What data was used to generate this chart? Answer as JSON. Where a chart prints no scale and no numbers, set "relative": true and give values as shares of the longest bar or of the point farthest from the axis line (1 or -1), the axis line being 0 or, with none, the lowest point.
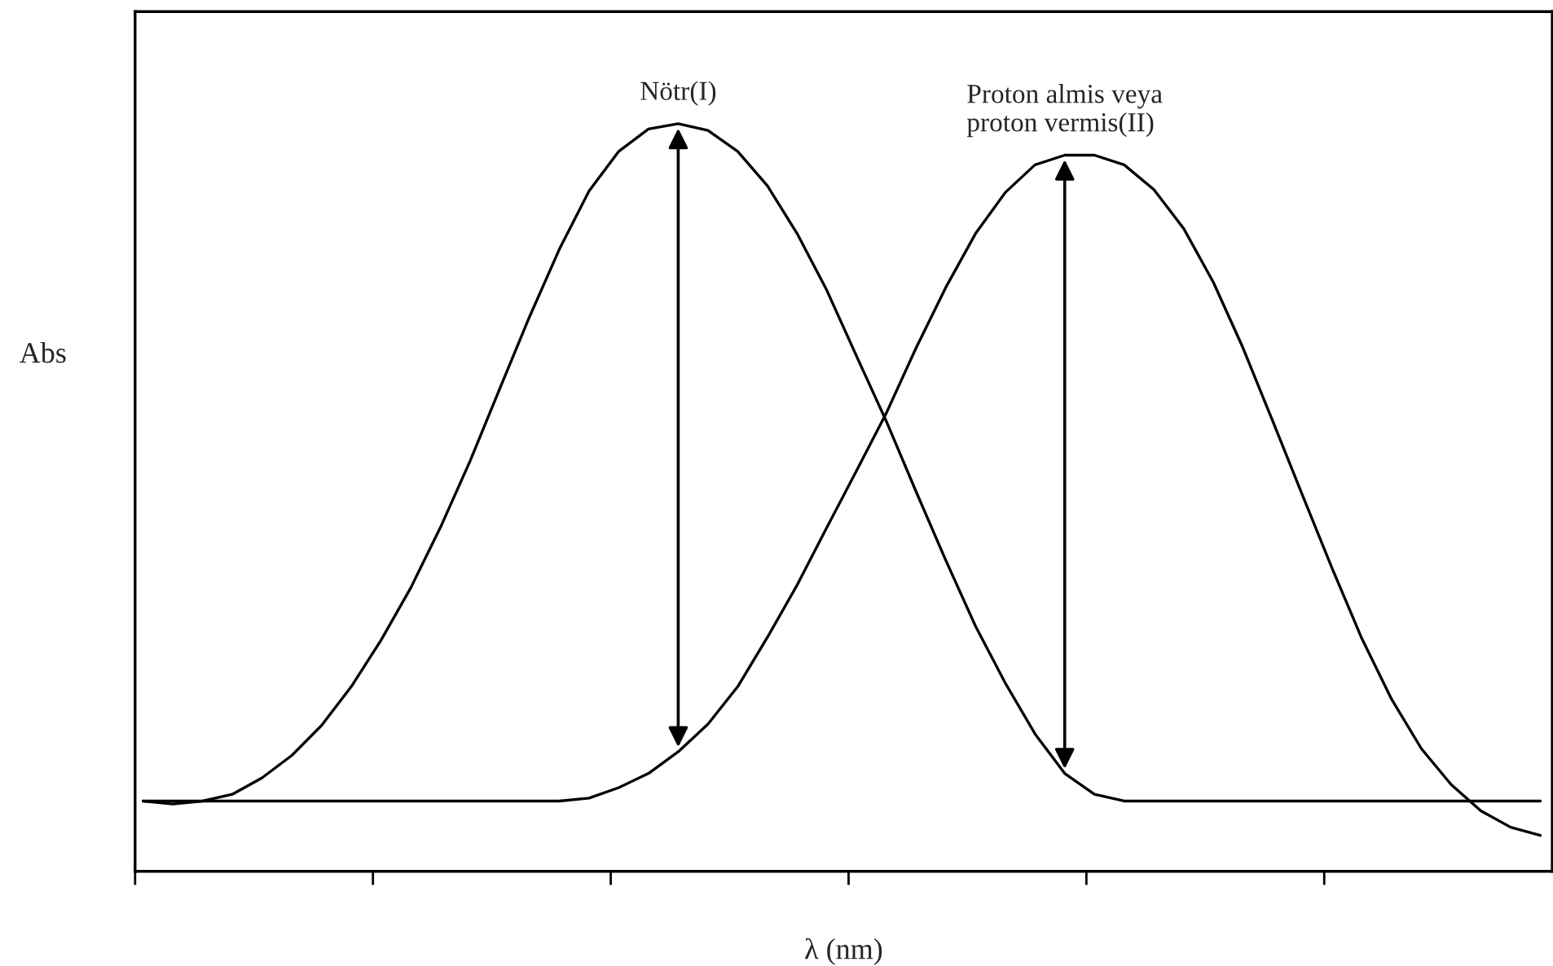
{
  "chart_data": {
    "type": "line",
    "relative": true,
    "xlabel": "λ (nm)",
    "ylabel": "Abs",
    "categories": [
      null,
      null,
      null,
      null,
      null,
      null,
      null,
      null,
      null,
      null,
      null,
      null,
      null,
      null,
      null,
      null,
      null,
      null,
      null,
      null,
      null,
      null,
      null,
      null,
      null,
      null,
      null,
      null,
      null,
      null,
      null,
      null,
      null,
      null,
      null,
      null,
      null,
      null,
      null,
      null,
      null,
      null,
      null,
      null,
      null,
      null,
      null,
      null
    ],
    "series": [
      {
        "color": "#000000",
        "values": [
          0.094,
          0.09,
          0.094,
          0.103,
          0.125,
          0.155,
          0.195,
          0.247,
          0.309,
          0.379,
          0.46,
          0.549,
          0.646,
          0.742,
          0.832,
          0.91,
          0.963,
          0.993,
          1,
          0.991,
          0.963,
          0.917,
          0.853,
          0.777,
          0.689,
          0.602,
          0.508,
          0.416,
          0.328,
          0.252,
          0.184,
          0.131,
          0.103,
          0.094,
          0.094,
          0.094,
          0.094,
          0.094,
          0.094,
          0.094,
          0.094,
          0.094,
          0.094,
          0.094,
          0.094,
          0.094,
          0.094,
          0.094
        ]
      },
      {
        "color": "#000000",
        "values": [
          0.094,
          0.094,
          0.094,
          0.094,
          0.094,
          0.094,
          0.094,
          0.094,
          0.094,
          0.094,
          0.094,
          0.094,
          0.094,
          0.094,
          0.094,
          0.098,
          0.112,
          0.131,
          0.16,
          0.197,
          0.247,
          0.313,
          0.383,
          0.46,
          0.536,
          0.613,
          0.7,
          0.781,
          0.853,
          0.908,
          0.945,
          0.958,
          0.958,
          0.945,
          0.912,
          0.86,
          0.788,
          0.7,
          0.602,
          0.503,
          0.405,
          0.311,
          0.23,
          0.164,
          0.116,
          0.081,
          0.059,
          0.048
        ]
      }
    ],
    "annotations": [
      "Nötr(I)",
      "Proton almis veya\nproton vermis(II)"
    ],
    "grid": false,
    "legend": false,
    "marker": "none",
    "line_style": "solid"
  }
}
